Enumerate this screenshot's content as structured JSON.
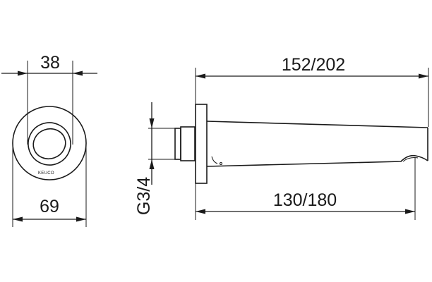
{
  "front_view": {
    "dim_inner_diameter": "38",
    "dim_outer_diameter": "69",
    "brand_mark": "KEUCO"
  },
  "side_view": {
    "dim_total_length": "152/202",
    "dim_spout_length": "130/180",
    "dim_thread": "G3/4"
  }
}
